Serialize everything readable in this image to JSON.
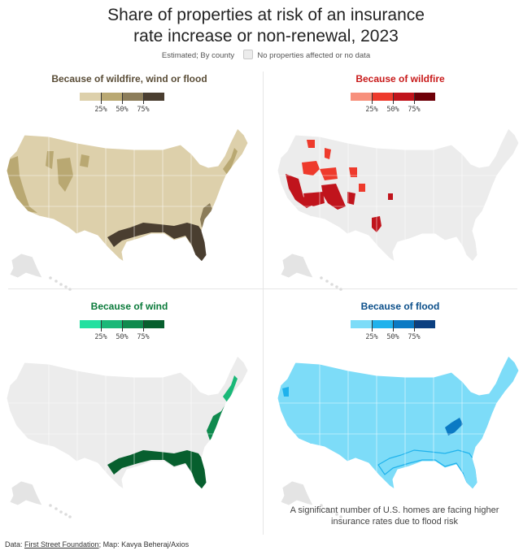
{
  "title_line1": "Share of properties at risk of an insurance",
  "title_line2": "rate increase or non-renewal, 2023",
  "subtitle": "Estimated; By county",
  "no_data_label": "No properties affected or no data",
  "no_data_color": "#ececec",
  "legend_labels": [
    "25%",
    "50%",
    "75%"
  ],
  "panels": [
    {
      "title": "Because of wildfire, wind or flood",
      "title_color": "#5a4d37",
      "base_color": "#ddd0ab",
      "scale": [
        "#ddd0ab",
        "#b9a872",
        "#8c7d5a",
        "#4a3e30"
      ],
      "hotspots": [
        {
          "region": "Pacific coast",
          "level": 2
        },
        {
          "region": "Rocky Mountains",
          "level": 2
        },
        {
          "region": "Gulf Coast",
          "level": 4
        },
        {
          "region": "Florida",
          "level": 4
        },
        {
          "region": "Southeast Atlantic coast",
          "level": 3
        }
      ]
    },
    {
      "title": "Because of wildfire",
      "title_color": "#c81a1a",
      "base_color": "#ececec",
      "scale": [
        "#f7907c",
        "#ee3a2c",
        "#c0141c",
        "#6e0008"
      ],
      "hotspots": [
        {
          "region": "California",
          "level": 3
        },
        {
          "region": "Nevada / Utah",
          "level": 2
        },
        {
          "region": "Arizona / New Mexico",
          "level": 3
        },
        {
          "region": "Idaho / Montana",
          "level": 2
        },
        {
          "region": "Colorado / Wyoming",
          "level": 2
        },
        {
          "region": "Texas Hill Country",
          "level": 3
        }
      ]
    },
    {
      "title": "Because of wind",
      "title_color": "#0a7a3a",
      "base_color": "#ececec",
      "scale": [
        "#22e0a0",
        "#1ab878",
        "#0f8a4e",
        "#075f2e"
      ],
      "hotspots": [
        {
          "region": "Gulf Coast",
          "level": 4
        },
        {
          "region": "Florida",
          "level": 4
        },
        {
          "region": "Carolinas coast",
          "level": 3
        },
        {
          "region": "Mid-Atlantic coast",
          "level": 2
        }
      ]
    },
    {
      "title": "Because of flood",
      "title_color": "#0b4f8a",
      "base_color": "#7ddcf8",
      "scale": [
        "#7ddcf8",
        "#1fb2ec",
        "#0b7ac4",
        "#0b3f80"
      ],
      "hotspots": [
        {
          "region": "Appalachia",
          "level": 3
        },
        {
          "region": "Gulf Coast",
          "level": 2
        },
        {
          "region": "Pacific Northwest",
          "level": 2
        }
      ]
    }
  ],
  "annotation": "A significant number of U.S. homes are facing higher insurance rates due to flood risk",
  "footer_prefix": "Data: ",
  "footer_source": "First Street Foundation",
  "footer_rest": "; Map: Kavya Beheraj/Axios"
}
